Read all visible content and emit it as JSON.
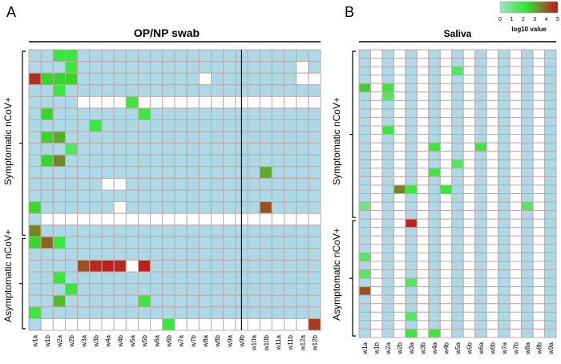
{
  "panels": {
    "A": {
      "letter": "A",
      "title": "OP/NP swab",
      "columns": [
        "w1a",
        "w1b",
        "w2a",
        "w2b",
        "w3a",
        "w3b",
        "w4a",
        "w4b",
        "w5a",
        "w5b",
        "w6a",
        "w6b",
        "w7a",
        "w7b",
        "w8a",
        "w8b",
        "w9a",
        "w9b",
        "w10a",
        "w10b",
        "w11a",
        "w11b",
        "w12a",
        "w12b"
      ],
      "groups": [
        {
          "label": "Symptomatic nCoV+"
        },
        {
          "label": "Asymptomatic nCoV+"
        }
      ]
    },
    "B": {
      "letter": "B",
      "title": "Saliva",
      "columns": [
        "w1a",
        "w1b",
        "w2a",
        "w2b",
        "w3a",
        "w3b",
        "w4a",
        "w4b",
        "w5a",
        "w5b",
        "w6a",
        "w6b",
        "w7a",
        "w7b",
        "w8a",
        "w8b",
        "w9a"
      ],
      "groups": [
        {
          "label": "Symptomatic nCoV+"
        },
        {
          "label": "Asymptomatic nCoV+"
        }
      ]
    }
  },
  "legend": {
    "title": "log10 value",
    "ticks": [
      "0",
      "1",
      "2",
      "3",
      "4",
      "5"
    ],
    "colors": [
      "#9fe3c8",
      "#2ee82e",
      "#c9101c"
    ]
  },
  "colors": {
    "not_detected": "#add8e6",
    "blank": "#ffffff",
    "grid": "#c0a9a9"
  },
  "chart_data": [
    {
      "type": "heatmap",
      "panel": "A",
      "title": "OP/NP swab",
      "x": [
        "w1a",
        "w1b",
        "w2a",
        "w2b",
        "w3a",
        "w3b",
        "w4a",
        "w4b",
        "w5a",
        "w5b",
        "w6a",
        "w6b",
        "w7a",
        "w7b",
        "w8a",
        "w8b",
        "w9a",
        "w9b",
        "w10a",
        "w10b",
        "w11a",
        "w11b",
        "w12a",
        "w12b"
      ],
      "row_groups": [
        {
          "name": "Symptomatic nCoV+",
          "rows": [
            0,
            15
          ]
        },
        {
          "name": "Asymptomatic nCoV+",
          "rows": [
            16,
            23
          ]
        }
      ],
      "value_scale": "log10",
      "encoding": "0 = not detected, -1 = no sample, positive = log10 value",
      "z": [
        [
          0,
          0,
          2,
          2,
          0,
          0,
          0,
          0,
          0,
          0,
          0,
          0,
          0,
          0,
          0,
          0,
          0,
          0,
          0,
          0,
          0,
          0,
          0,
          0
        ],
        [
          0,
          0,
          0,
          2,
          0,
          0,
          0,
          0,
          0,
          0,
          0,
          0,
          0,
          0,
          0,
          0,
          0,
          0,
          0,
          0,
          0,
          0,
          -1,
          0
        ],
        [
          4.6,
          2.5,
          2.5,
          2.5,
          0,
          0,
          0,
          0,
          0,
          0,
          0,
          0,
          0,
          0,
          -1,
          0,
          0,
          0,
          0,
          0,
          0,
          0,
          -1,
          -1
        ],
        [
          0,
          0,
          2,
          0,
          0,
          0,
          0,
          0,
          0,
          0,
          0,
          0,
          0,
          0,
          0,
          0,
          0,
          0,
          0,
          0,
          0,
          0,
          0,
          0
        ],
        [
          0,
          0,
          0,
          0,
          -1,
          -1,
          -1,
          -1,
          2,
          -1,
          -1,
          -1,
          -1,
          -1,
          -1,
          -1,
          -1,
          -1,
          -1,
          -1,
          -1,
          -1,
          -1,
          -1
        ],
        [
          0,
          2.5,
          0,
          0,
          0,
          0,
          0,
          0,
          0,
          2,
          0,
          0,
          0,
          0,
          0,
          0,
          0,
          0,
          0,
          0,
          0,
          0,
          0,
          0
        ],
        [
          0,
          0,
          0,
          0,
          0,
          2,
          0,
          0,
          0,
          0,
          0,
          0,
          0,
          0,
          0,
          0,
          0,
          0,
          0,
          0,
          0,
          0,
          0,
          0
        ],
        [
          0,
          2.5,
          3,
          0,
          0,
          0,
          0,
          0,
          0,
          0,
          0,
          0,
          0,
          0,
          0,
          0,
          0,
          0,
          0,
          0,
          0,
          0,
          0,
          0
        ],
        [
          0,
          0,
          0,
          1.5,
          0,
          0,
          0,
          0,
          0,
          0,
          0,
          0,
          0,
          0,
          0,
          0,
          0,
          0,
          0,
          0,
          0,
          0,
          0,
          0
        ],
        [
          0,
          2.5,
          3.5,
          0,
          0,
          0,
          0,
          0,
          0,
          0,
          0,
          0,
          0,
          0,
          0,
          0,
          0,
          0,
          0,
          0,
          0,
          0,
          0,
          0
        ],
        [
          0,
          0,
          0,
          0,
          0,
          0,
          0,
          0,
          0,
          0,
          0,
          0,
          0,
          0,
          0,
          0,
          0,
          0,
          0,
          3,
          0,
          0,
          0,
          0
        ],
        [
          0,
          0,
          0,
          0,
          0,
          0,
          -1,
          -1,
          0,
          0,
          0,
          0,
          0,
          0,
          0,
          0,
          0,
          0,
          0,
          0,
          0,
          0,
          0,
          0
        ],
        [
          0,
          0,
          0,
          0,
          0,
          0,
          0,
          0,
          0,
          0,
          0,
          0,
          0,
          0,
          0,
          0,
          0,
          0,
          0,
          0,
          0,
          0,
          0,
          0
        ],
        [
          2.5,
          0,
          0,
          0,
          0,
          0,
          0,
          -1,
          0,
          0,
          0,
          0,
          0,
          0,
          0,
          0,
          0,
          0,
          0,
          4.2,
          0,
          0,
          0,
          0
        ],
        [
          0,
          -1,
          -1,
          -1,
          -1,
          -1,
          -1,
          -1,
          -1,
          -1,
          -1,
          -1,
          -1,
          -1,
          -1,
          -1,
          -1,
          -1,
          -1,
          -1,
          -1,
          -1,
          -1,
          -1
        ],
        [
          3.5,
          0,
          0,
          0,
          0,
          0,
          0,
          0,
          0,
          0,
          0,
          0,
          0,
          0,
          0,
          0,
          0,
          0,
          0,
          0,
          0,
          0,
          0,
          0
        ],
        [
          2.5,
          4,
          2,
          0,
          0,
          0,
          0,
          0,
          0,
          0,
          0,
          0,
          0,
          0,
          0,
          0,
          0,
          0,
          0,
          0,
          0,
          0,
          0,
          0
        ],
        [
          0,
          0,
          0,
          0,
          0,
          0,
          0,
          0,
          0,
          0,
          0,
          0,
          0,
          0,
          0,
          0,
          0,
          0,
          0,
          0,
          0,
          0,
          0,
          0
        ],
        [
          0,
          0,
          0,
          0,
          4.2,
          4.7,
          4.8,
          4.7,
          -1,
          4.8,
          0,
          0,
          0,
          0,
          0,
          0,
          0,
          0,
          0,
          0,
          0,
          0,
          0,
          0
        ],
        [
          0,
          0,
          2,
          0,
          0,
          0,
          0,
          0,
          0,
          0,
          0,
          0,
          0,
          0,
          0,
          0,
          0,
          0,
          0,
          0,
          0,
          0,
          0,
          0
        ],
        [
          0,
          0,
          0,
          2,
          0,
          0,
          0,
          0,
          0,
          0,
          0,
          0,
          0,
          0,
          0,
          0,
          0,
          0,
          0,
          0,
          0,
          0,
          0,
          0
        ],
        [
          0,
          0,
          2.8,
          0,
          0,
          0,
          0,
          0,
          0,
          2,
          0,
          0,
          0,
          0,
          0,
          0,
          0,
          0,
          0,
          0,
          0,
          0,
          0,
          0
        ],
        [
          2,
          0,
          0,
          0,
          0,
          0,
          0,
          0,
          0,
          0,
          0,
          0,
          0,
          0,
          0,
          0,
          0,
          0,
          0,
          0,
          0,
          0,
          0,
          0
        ],
        [
          0,
          -1,
          -1,
          -1,
          -1,
          -1,
          -1,
          -1,
          -1,
          -1,
          -1,
          2,
          -1,
          -1,
          -1,
          -1,
          -1,
          -1,
          -1,
          -1,
          -1,
          -1,
          -1,
          4.5
        ]
      ]
    },
    {
      "type": "heatmap",
      "panel": "B",
      "title": "Saliva",
      "x": [
        "w1a",
        "w1b",
        "w2a",
        "w2b",
        "w3a",
        "w3b",
        "w4a",
        "w4b",
        "w5a",
        "w5b",
        "w6a",
        "w6b",
        "w7a",
        "w7b",
        "w8a",
        "w8b",
        "w9a"
      ],
      "row_groups": [
        {
          "name": "Symptomatic nCoV+",
          "rows": [
            0,
            19
          ]
        },
        {
          "name": "Asymptomatic nCoV+",
          "rows": [
            20,
            33
          ]
        }
      ],
      "value_scale": "log10",
      "encoding": "0 = not detected, -1 = no sample, positive = log10 value",
      "z": [
        [
          0,
          -1,
          0,
          -1,
          0,
          -1,
          0,
          -1,
          0,
          -1,
          0,
          -1,
          0,
          -1,
          0,
          -1,
          0
        ],
        [
          0,
          -1,
          0,
          -1,
          0,
          -1,
          0,
          -1,
          0,
          -1,
          0,
          -1,
          0,
          -1,
          0,
          -1,
          0
        ],
        [
          0,
          -1,
          0,
          -1,
          0,
          -1,
          0,
          -1,
          1.5,
          -1,
          0,
          -1,
          0,
          -1,
          0,
          -1,
          0
        ],
        [
          0,
          -1,
          0,
          -1,
          0,
          -1,
          0,
          -1,
          0,
          -1,
          0,
          -1,
          0,
          -1,
          0,
          -1,
          0
        ],
        [
          2.5,
          -1,
          2,
          -1,
          0,
          -1,
          0,
          -1,
          0,
          -1,
          0,
          -1,
          0,
          -1,
          0,
          -1,
          0
        ],
        [
          0,
          -1,
          1.5,
          -1,
          0,
          -1,
          0,
          -1,
          0,
          -1,
          0,
          -1,
          0,
          -1,
          0,
          -1,
          0
        ],
        [
          0,
          -1,
          0,
          -1,
          0,
          -1,
          0,
          -1,
          0,
          -1,
          0,
          -1,
          0,
          -1,
          0,
          -1,
          0
        ],
        [
          0,
          -1,
          0,
          -1,
          0,
          -1,
          0,
          -1,
          0,
          -1,
          0,
          -1,
          0,
          -1,
          0,
          -1,
          0
        ],
        [
          0,
          -1,
          0,
          -1,
          0,
          -1,
          0,
          -1,
          0,
          -1,
          0,
          -1,
          0,
          -1,
          0,
          -1,
          0
        ],
        [
          0,
          -1,
          2,
          -1,
          0,
          -1,
          0,
          -1,
          0,
          -1,
          0,
          -1,
          0,
          -1,
          0,
          -1,
          0
        ],
        [
          0,
          -1,
          0,
          -1,
          0,
          -1,
          0,
          -1,
          0,
          -1,
          0,
          -1,
          0,
          -1,
          0,
          -1,
          0
        ],
        [
          0,
          -1,
          0,
          -1,
          0,
          -1,
          2,
          -1,
          0,
          -1,
          2,
          -1,
          0,
          -1,
          0,
          -1,
          0
        ],
        [
          0,
          -1,
          0,
          -1,
          0,
          -1,
          0,
          -1,
          0,
          -1,
          0,
          -1,
          0,
          -1,
          0,
          -1,
          0
        ],
        [
          0,
          -1,
          0,
          -1,
          0,
          -1,
          0,
          -1,
          1.5,
          -1,
          0,
          -1,
          0,
          -1,
          0,
          -1,
          0
        ],
        [
          0,
          -1,
          0,
          -1,
          0,
          -1,
          2,
          -1,
          0,
          -1,
          0,
          -1,
          0,
          -1,
          0,
          -1,
          0
        ],
        [
          0,
          -1,
          0,
          -1,
          0,
          -1,
          0,
          -1,
          0,
          -1,
          0,
          -1,
          0,
          -1,
          0,
          -1,
          0
        ],
        [
          0,
          -1,
          0,
          3.5,
          2,
          -1,
          0,
          2,
          0,
          -1,
          0,
          -1,
          0,
          -1,
          0,
          -1,
          0
        ],
        [
          0,
          -1,
          0,
          -1,
          0,
          -1,
          0,
          -1,
          0,
          -1,
          0,
          -1,
          0,
          -1,
          0,
          -1,
          0
        ],
        [
          1,
          -1,
          0,
          -1,
          0,
          -1,
          0,
          -1,
          0,
          -1,
          0,
          -1,
          0,
          -1,
          1.5,
          -1,
          0
        ],
        [
          0,
          -1,
          0,
          -1,
          0,
          -1,
          0,
          -1,
          0,
          -1,
          0,
          -1,
          0,
          -1,
          0,
          -1,
          0
        ],
        [
          0,
          -1,
          0,
          -1,
          4.8,
          -1,
          0,
          -1,
          0,
          -1,
          0,
          -1,
          0,
          -1,
          0,
          -1,
          0
        ],
        [
          0,
          -1,
          0,
          -1,
          0,
          -1,
          0,
          -1,
          0,
          -1,
          0,
          -1,
          0,
          -1,
          0,
          -1,
          0
        ],
        [
          0,
          -1,
          0,
          -1,
          0,
          -1,
          0,
          -1,
          0,
          -1,
          0,
          -1,
          0,
          -1,
          0,
          -1,
          0
        ],
        [
          0,
          -1,
          0,
          -1,
          0,
          -1,
          0,
          -1,
          0,
          -1,
          0,
          -1,
          0,
          -1,
          0,
          -1,
          0
        ],
        [
          1.5,
          -1,
          0,
          -1,
          0,
          -1,
          0,
          -1,
          0,
          -1,
          0,
          -1,
          0,
          -1,
          0,
          -1,
          0
        ],
        [
          0,
          -1,
          0,
          -1,
          0,
          -1,
          0,
          -1,
          0,
          -1,
          0,
          -1,
          0,
          -1,
          0,
          -1,
          0
        ],
        [
          1.5,
          -1,
          0,
          -1,
          0,
          -1,
          0,
          -1,
          0,
          -1,
          0,
          -1,
          0,
          -1,
          0,
          -1,
          0
        ],
        [
          0,
          -1,
          0,
          -1,
          1.5,
          -1,
          0,
          -1,
          0,
          -1,
          0,
          -1,
          0,
          -1,
          0,
          -1,
          0
        ],
        [
          4.2,
          -1,
          0,
          -1,
          0,
          -1,
          0,
          -1,
          0,
          -1,
          0,
          -1,
          0,
          -1,
          0,
          -1,
          0
        ],
        [
          0,
          -1,
          0,
          -1,
          0,
          -1,
          0,
          -1,
          0,
          -1,
          0,
          -1,
          0,
          -1,
          0,
          -1,
          0
        ],
        [
          0,
          -1,
          0,
          -1,
          0,
          -1,
          0,
          -1,
          0,
          -1,
          0,
          -1,
          0,
          -1,
          0,
          -1,
          0
        ],
        [
          0,
          -1,
          0,
          -1,
          1.5,
          -1,
          0,
          -1,
          0,
          -1,
          0,
          -1,
          0,
          -1,
          0,
          -1,
          0
        ],
        [
          0,
          -1,
          0,
          -1,
          0,
          -1,
          0,
          -1,
          0,
          -1,
          0,
          -1,
          0,
          -1,
          0,
          -1,
          0
        ],
        [
          0,
          -1,
          0,
          -1,
          2,
          -1,
          2,
          -1,
          0,
          -1,
          0,
          -1,
          0,
          -1,
          0,
          -1,
          0
        ]
      ]
    }
  ]
}
